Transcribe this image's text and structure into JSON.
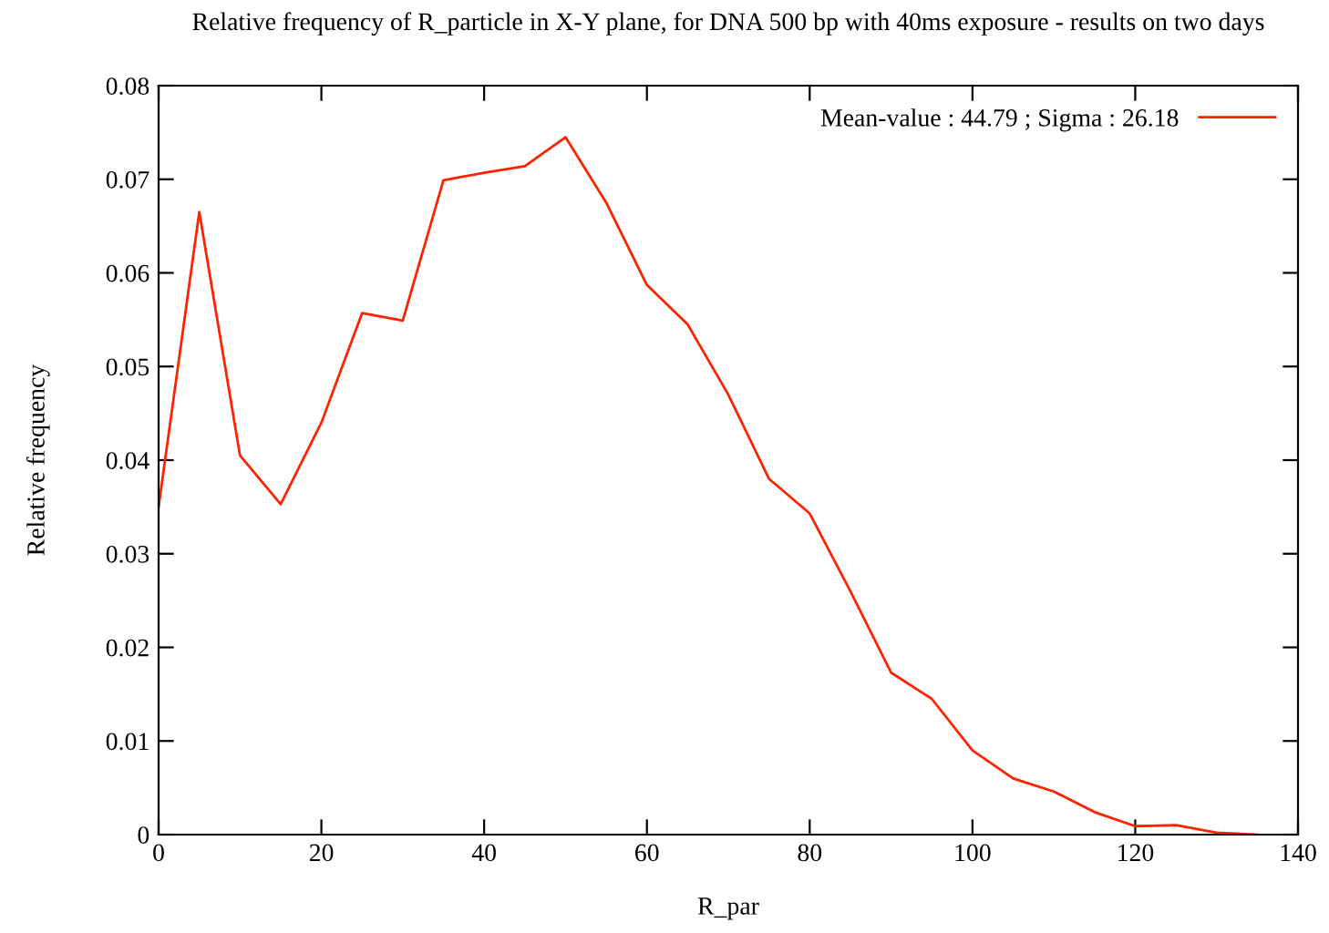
{
  "chart_data": {
    "type": "line",
    "title": "Relative frequency of R_particle in X-Y plane, for DNA 500 bp with 40ms exposure - results on two days",
    "xlabel": "R_par",
    "ylabel": "Relative frequency",
    "x": [
      0,
      5,
      10,
      15,
      20,
      25,
      30,
      35,
      40,
      45,
      50,
      55,
      60,
      65,
      70,
      75,
      80,
      85,
      90,
      95,
      100,
      105,
      110,
      115,
      120,
      125,
      130,
      135
    ],
    "series": [
      {
        "name": "Mean-value : 44.79 ; Sigma : 26.18",
        "color": "#ff2200",
        "values": [
          0.035,
          0.0665,
          0.0405,
          0.0353,
          0.044,
          0.0557,
          0.0549,
          0.0699,
          0.0707,
          0.0714,
          0.0745,
          0.0675,
          0.0587,
          0.0545,
          0.047,
          0.038,
          0.0343,
          0.026,
          0.0173,
          0.0145,
          0.009,
          0.006,
          0.0046,
          0.0024,
          0.0009,
          0.001,
          0.0002,
          0.0
        ]
      }
    ],
    "xlim": [
      0,
      140
    ],
    "xticks": [
      0,
      20,
      40,
      60,
      80,
      100,
      120,
      140
    ],
    "ylim": [
      0,
      0.08
    ],
    "yticks": [
      {
        "value": 0,
        "label": "0"
      },
      0.01,
      0.02,
      0.03,
      0.04,
      0.05,
      0.06,
      0.07,
      0.08
    ],
    "grid": false,
    "legend": "top right",
    "marker": "none",
    "line_style": "solid"
  }
}
